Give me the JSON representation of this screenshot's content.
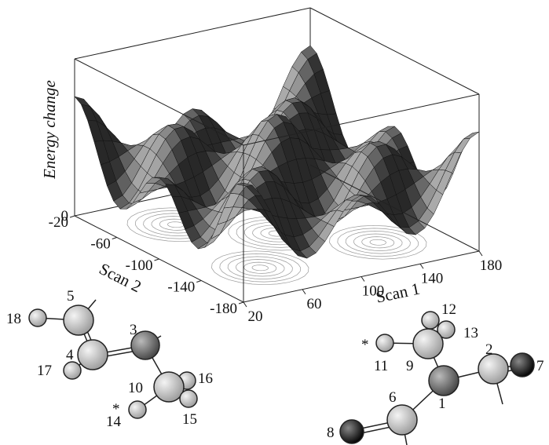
{
  "surface": {
    "z_label": "Energy change",
    "z_ticks": [
      0
    ],
    "x_label": "Scan 1",
    "x_ticks": [
      20,
      60,
      100,
      140,
      180
    ],
    "y_label": "Scan 2",
    "y_ticks": [
      -20,
      -60,
      -100,
      -140,
      -180
    ]
  },
  "left_molecule": {
    "labels": [
      "5",
      "18",
      "4",
      "3",
      "17",
      "10",
      "16",
      "15",
      "*",
      "14"
    ]
  },
  "right_molecule": {
    "labels": [
      "12",
      "13",
      "*",
      "11",
      "9",
      "2",
      "7",
      "1",
      "6",
      "8"
    ]
  }
}
